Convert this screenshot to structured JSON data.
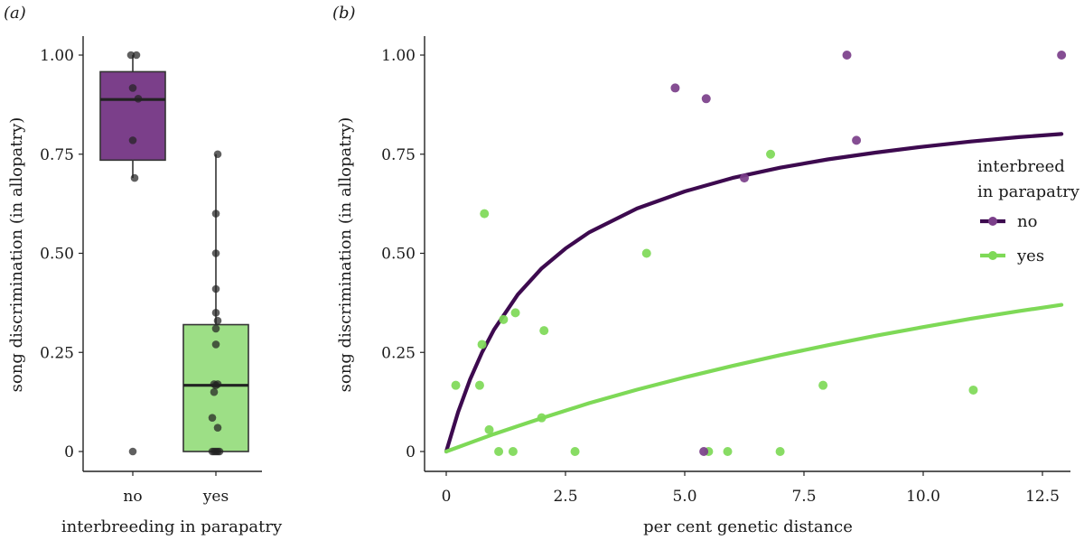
{
  "figure": {
    "panel_a_label": "(a)",
    "panel_b_label": "(b)"
  },
  "colors": {
    "no": "#7b3f8a",
    "no_dark": "#3d0a4f",
    "yes": "#7ed957",
    "yes_box": "#9ddf86",
    "points_a": "#222222"
  },
  "chart_data": [
    {
      "type": "box",
      "panel": "a",
      "xlabel": "interbreeding in parapatry",
      "ylabel": "song discrimination (in allopatry)",
      "categories": [
        "no",
        "yes"
      ],
      "ylim": [
        0,
        1
      ],
      "yticks": [
        0,
        0.25,
        0.5,
        0.75,
        1.0
      ],
      "ytick_labels": [
        "0",
        "0.25",
        "0.50",
        "0.75",
        "1.00"
      ],
      "boxes": [
        {
          "category": "no",
          "q1": 0.735,
          "median": 0.888,
          "q3": 0.958,
          "whisker_low": 0.69,
          "whisker_high": 1.0
        },
        {
          "category": "yes",
          "q1": 0.0,
          "median": 0.167,
          "q3": 0.32,
          "whisker_low": 0.0,
          "whisker_high": 0.75
        }
      ],
      "points": [
        {
          "category": "no",
          "values": [
            1.0,
            1.0,
            0.917,
            0.89,
            0.785,
            0.69,
            0.0
          ]
        },
        {
          "category": "yes",
          "values": [
            0.75,
            0.6,
            0.5,
            0.41,
            0.35,
            0.33,
            0.31,
            0.27,
            0.17,
            0.17,
            0.167,
            0.15,
            0.085,
            0.06,
            0.0,
            0.0,
            0.0,
            0.0,
            0.0
          ]
        }
      ],
      "grid": false
    },
    {
      "type": "scatter",
      "panel": "b",
      "xlabel": "per cent genetic distance",
      "ylabel": "song discrimination (in allopatry)",
      "xlim": [
        -0.9,
        13.5
      ],
      "ylim": [
        -0.06,
        1.06
      ],
      "xticks": [
        0,
        2.5,
        5.0,
        7.5,
        10.0,
        12.5
      ],
      "xtick_labels": [
        "0",
        "2.5",
        "5.0",
        "7.5",
        "10.0",
        "12.5"
      ],
      "yticks": [
        0,
        0.25,
        0.5,
        0.75,
        1.0
      ],
      "ytick_labels": [
        "0",
        "0.25",
        "0.50",
        "0.75",
        "1.00"
      ],
      "legend": {
        "title_line1": "interbreed",
        "title_line2": "in parapatry",
        "position": "right"
      },
      "series": [
        {
          "name": "no",
          "points": [
            {
              "x": 4.8,
              "y": 0.917
            },
            {
              "x": 5.45,
              "y": 0.89
            },
            {
              "x": 8.4,
              "y": 1.0
            },
            {
              "x": 12.9,
              "y": 1.0
            },
            {
              "x": 8.6,
              "y": 0.785
            },
            {
              "x": 6.25,
              "y": 0.69
            },
            {
              "x": 5.4,
              "y": 0.0
            }
          ],
          "fit_curve": [
            {
              "x": 0,
              "y": 0.0
            },
            {
              "x": 0.25,
              "y": 0.1
            },
            {
              "x": 0.5,
              "y": 0.182
            },
            {
              "x": 0.75,
              "y": 0.25
            },
            {
              "x": 1.0,
              "y": 0.307
            },
            {
              "x": 1.5,
              "y": 0.396
            },
            {
              "x": 2.0,
              "y": 0.462
            },
            {
              "x": 2.5,
              "y": 0.512
            },
            {
              "x": 3.0,
              "y": 0.553
            },
            {
              "x": 4.0,
              "y": 0.613
            },
            {
              "x": 5.0,
              "y": 0.656
            },
            {
              "x": 6.0,
              "y": 0.69
            },
            {
              "x": 7.0,
              "y": 0.716
            },
            {
              "x": 8.0,
              "y": 0.737
            },
            {
              "x": 9.0,
              "y": 0.754
            },
            {
              "x": 10.0,
              "y": 0.769
            },
            {
              "x": 11.0,
              "y": 0.782
            },
            {
              "x": 12.0,
              "y": 0.793
            },
            {
              "x": 12.9,
              "y": 0.801
            }
          ]
        },
        {
          "name": "yes",
          "points": [
            {
              "x": 0.2,
              "y": 0.167
            },
            {
              "x": 0.7,
              "y": 0.167
            },
            {
              "x": 0.75,
              "y": 0.27
            },
            {
              "x": 0.8,
              "y": 0.6
            },
            {
              "x": 0.9,
              "y": 0.055
            },
            {
              "x": 1.1,
              "y": 0.0
            },
            {
              "x": 1.4,
              "y": 0.0
            },
            {
              "x": 1.2,
              "y": 0.333
            },
            {
              "x": 1.45,
              "y": 0.35
            },
            {
              "x": 2.0,
              "y": 0.085
            },
            {
              "x": 2.05,
              "y": 0.305
            },
            {
              "x": 2.7,
              "y": 0.0
            },
            {
              "x": 4.2,
              "y": 0.5
            },
            {
              "x": 5.5,
              "y": 0.0
            },
            {
              "x": 5.9,
              "y": 0.0
            },
            {
              "x": 6.8,
              "y": 0.75
            },
            {
              "x": 7.0,
              "y": 0.0
            },
            {
              "x": 7.9,
              "y": 0.167
            },
            {
              "x": 11.05,
              "y": 0.155
            }
          ],
          "fit_curve": [
            {
              "x": 0,
              "y": 0.0
            },
            {
              "x": 0.5,
              "y": 0.022
            },
            {
              "x": 1.0,
              "y": 0.044
            },
            {
              "x": 1.5,
              "y": 0.064
            },
            {
              "x": 2.0,
              "y": 0.084
            },
            {
              "x": 3.0,
              "y": 0.122
            },
            {
              "x": 4.0,
              "y": 0.156
            },
            {
              "x": 5.0,
              "y": 0.187
            },
            {
              "x": 6.0,
              "y": 0.216
            },
            {
              "x": 7.0,
              "y": 0.243
            },
            {
              "x": 8.0,
              "y": 0.268
            },
            {
              "x": 9.0,
              "y": 0.292
            },
            {
              "x": 10.0,
              "y": 0.314
            },
            {
              "x": 11.0,
              "y": 0.335
            },
            {
              "x": 12.0,
              "y": 0.354
            },
            {
              "x": 12.9,
              "y": 0.37
            }
          ]
        }
      ],
      "grid": false
    }
  ]
}
